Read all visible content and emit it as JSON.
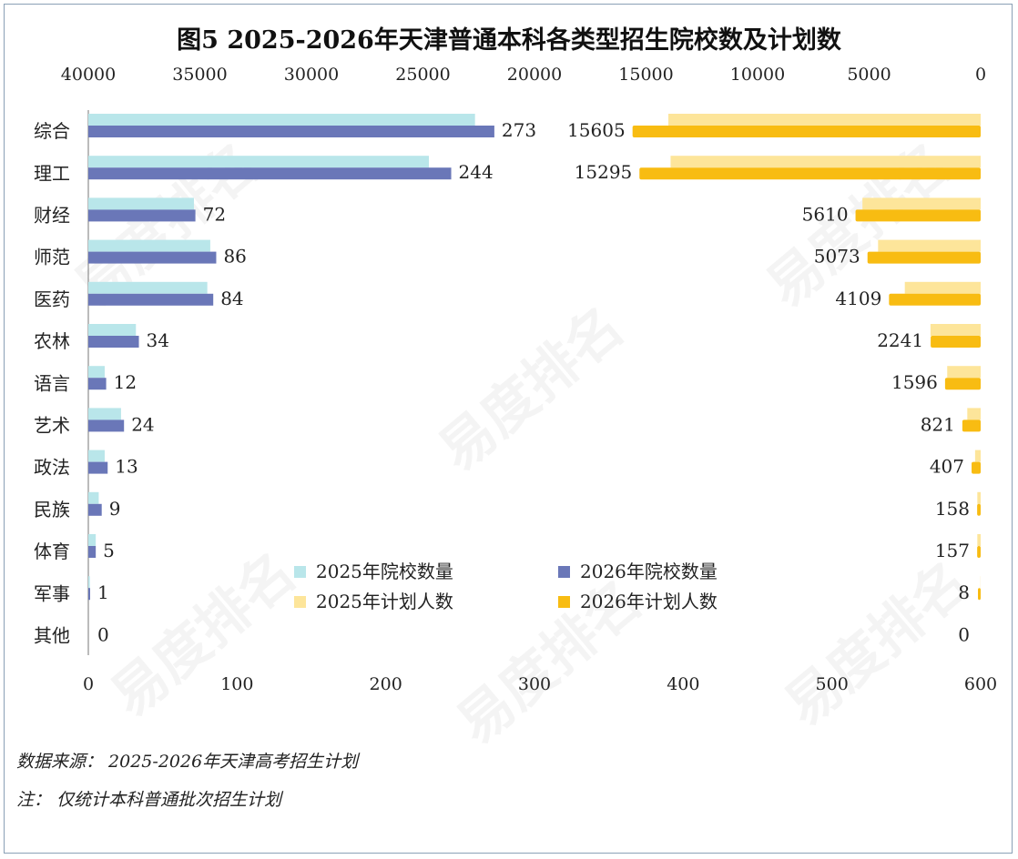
{
  "title": "图5  2025-2026年天津普通本科各类型招生院校数及计划数",
  "notes": {
    "source": "数据来源：  2025-2026年天津高考招生计划",
    "note": "注：  仅统计本科普通批次招生计划"
  },
  "watermark": "易度排名 EDU Ranking.cn",
  "chart_data": {
    "type": "bar",
    "orientation": "horizontal",
    "categories": [
      "综合",
      "理工",
      "财经",
      "师范",
      "医药",
      "农林",
      "语言",
      "艺术",
      "政法",
      "民族",
      "体育",
      "军事",
      "其他"
    ],
    "schools": {
      "axis": "bottom",
      "xlim": [
        0,
        600
      ],
      "ticks": [
        0,
        100,
        200,
        300,
        400,
        500,
        600
      ],
      "series": [
        {
          "name": "2025年院校数量",
          "color": "#b9e6ea",
          "values": [
            260,
            229,
            71,
            82,
            80,
            32,
            11,
            22,
            11,
            7,
            5,
            1,
            0
          ]
        },
        {
          "name": "2026年院校数量",
          "color": "#6a77b8",
          "values": [
            273,
            244,
            72,
            86,
            84,
            34,
            12,
            24,
            13,
            9,
            5,
            1,
            0
          ]
        }
      ],
      "labels_series": 1
    },
    "plans": {
      "axis": "top",
      "reversed": true,
      "xlim": [
        0,
        40000
      ],
      "ticks": [
        40000,
        35000,
        30000,
        25000,
        20000,
        15000,
        10000,
        5000,
        0
      ],
      "series": [
        {
          "name": "2025年计划人数",
          "color": "#fde59a",
          "values": [
            14000,
            13900,
            5300,
            4600,
            3400,
            2250,
            1500,
            600,
            250,
            150,
            150,
            8,
            0
          ]
        },
        {
          "name": "2026年计划人数",
          "color": "#f8bc12",
          "values": [
            15605,
            15295,
            5610,
            5073,
            4109,
            2241,
            1596,
            821,
            407,
            158,
            157,
            8,
            0
          ]
        }
      ],
      "labels_series": 1
    },
    "legend": {
      "placement": "center-bottom",
      "items": [
        {
          "label": "2025年院校数量",
          "color": "#b9e6ea"
        },
        {
          "label": "2026年院校数量",
          "color": "#6a77b8"
        },
        {
          "label": "2025年计划人数",
          "color": "#fde59a"
        },
        {
          "label": "2026年计划人数",
          "color": "#f8bc12"
        }
      ]
    }
  }
}
